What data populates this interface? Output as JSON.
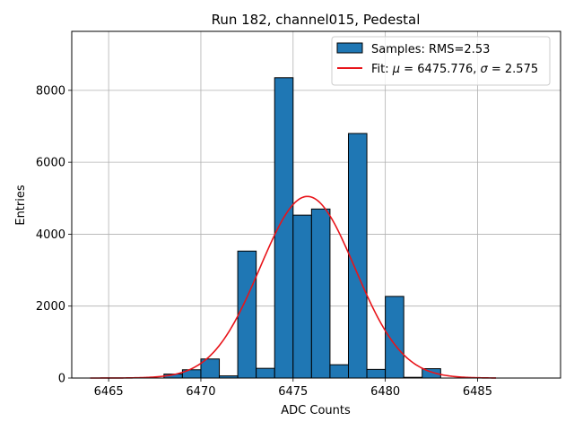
{
  "chart_data": {
    "type": "bar",
    "title": "Run 182, channel015, Pedestal",
    "xlabel": "ADC Counts",
    "ylabel": "Entries",
    "xlim": [
      6463.0,
      6489.5
    ],
    "ylim": [
      0,
      9640
    ],
    "grid": true,
    "x_ticks": [
      6465,
      6470,
      6475,
      6480,
      6485
    ],
    "y_ticks": [
      0,
      2000,
      4000,
      6000,
      8000
    ],
    "bin_width": 1,
    "bins": [
      {
        "left": 6468,
        "value": 110
      },
      {
        "left": 6469,
        "value": 230
      },
      {
        "left": 6470,
        "value": 530
      },
      {
        "left": 6471,
        "value": 60
      },
      {
        "left": 6472,
        "value": 3530
      },
      {
        "left": 6473,
        "value": 270
      },
      {
        "left": 6474,
        "value": 8350
      },
      {
        "left": 6475,
        "value": 4530
      },
      {
        "left": 6476,
        "value": 4700
      },
      {
        "left": 6477,
        "value": 370
      },
      {
        "left": 6478,
        "value": 6800
      },
      {
        "left": 6479,
        "value": 240
      },
      {
        "left": 6480,
        "value": 2270
      },
      {
        "left": 6481,
        "value": 20
      },
      {
        "left": 6482,
        "value": 260
      }
    ],
    "fit": {
      "mu": 6475.776,
      "sigma": 2.575,
      "amplitude": 5050,
      "x_range": [
        6464,
        6486
      ]
    },
    "legend": {
      "position": "top-right",
      "hist_label": "Samples: RMS=2.53",
      "fit_label_prefix": "Fit: ",
      "fit_mu_symbol": "μ",
      "fit_mu_text": " = 6475.776, ",
      "fit_sigma_symbol": "σ",
      "fit_sigma_text": " = 2.575"
    },
    "colors": {
      "bar_fill": "#1f77b4",
      "bar_edge": "#000000",
      "fit_line": "#e8141a",
      "grid": "#b0b0b0"
    }
  }
}
